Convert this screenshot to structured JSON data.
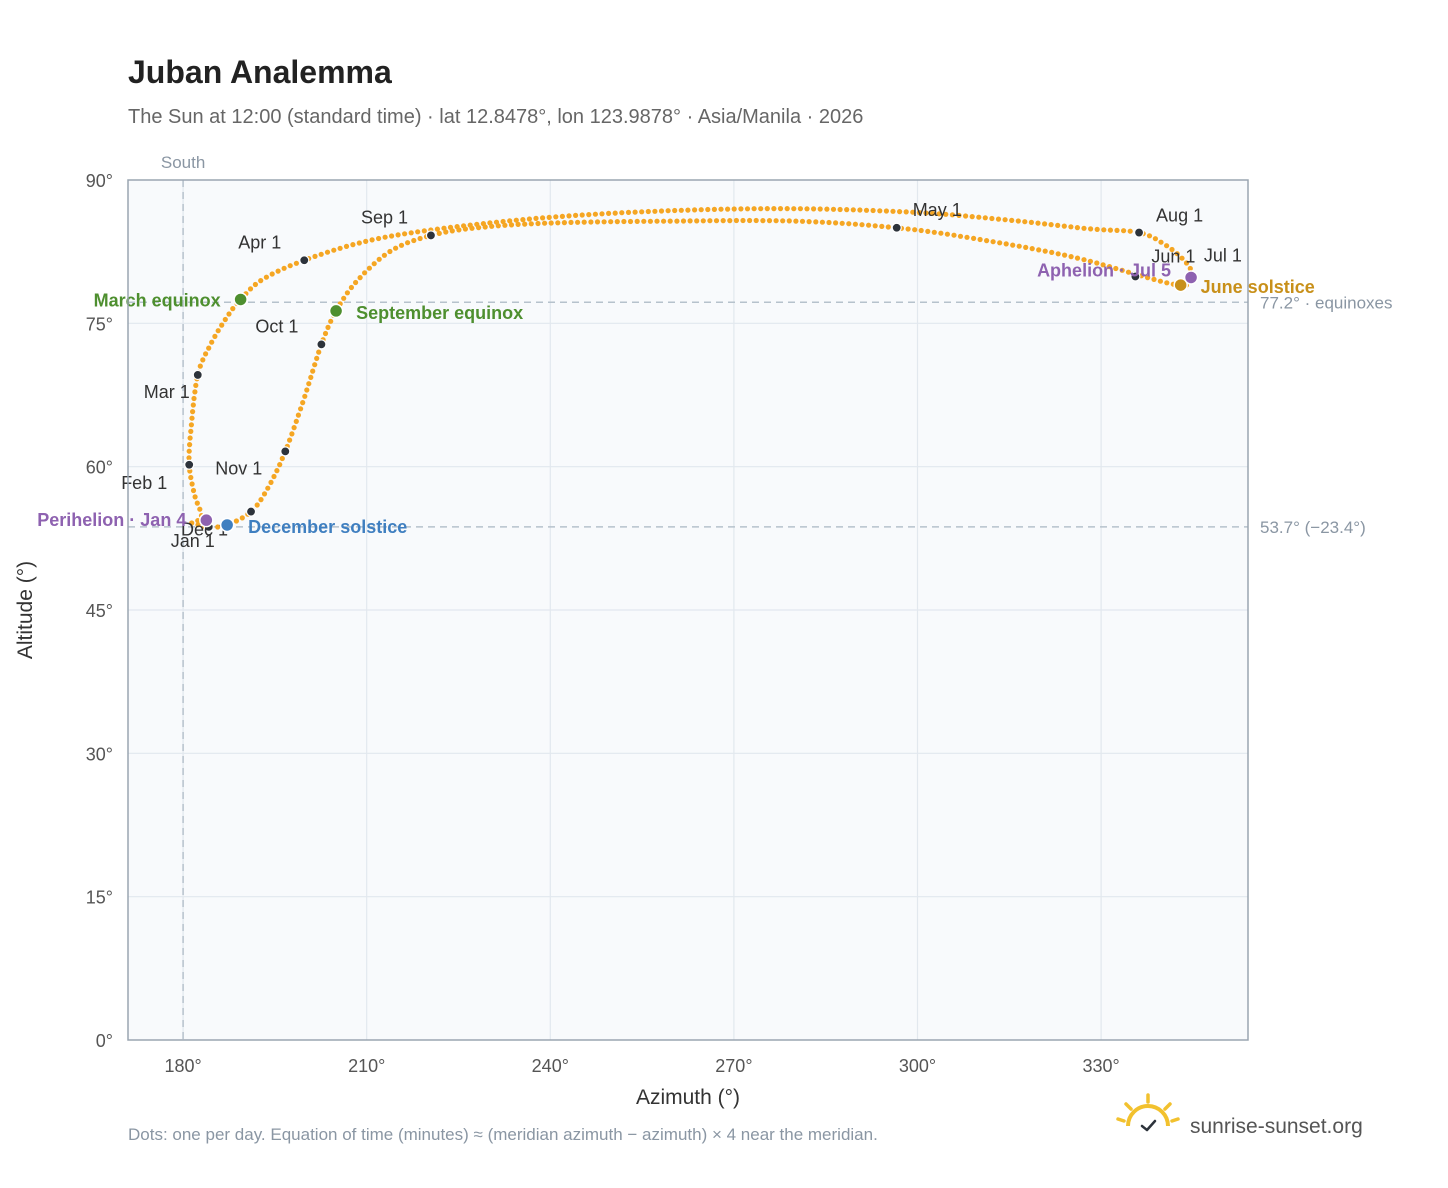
{
  "title": "Juban Analemma",
  "subtitle": "The Sun at 12:00 (standard time) · lat 12.8478°, lon 123.9878° · Asia/Manila · 2026",
  "footnote": "Dots: one per day. Equation of time (minutes) ≈ (meridian azimuth − azimuth) × 4 near the meridian.",
  "brand": {
    "name": "sunrise-sunset.org",
    "icon": "sun-check-icon",
    "icon_color": "#f2c12e"
  },
  "colors": {
    "curve": "#f5a623",
    "month_marker": "#2d333b",
    "equinox": "#4e8f2f",
    "june_solstice": "#c8901a",
    "december_solstice": "#3f7fc0",
    "apsis": "#8e62b0",
    "reference_line": "#b6c2cc",
    "plot_background": "#f8fafc",
    "grid": "#e2e8ee",
    "frame": "#9aa5b1"
  },
  "chart_data": {
    "type": "scatter",
    "xlabel": "Azimuth (°)",
    "ylabel": "Altitude (°)",
    "xlim": [
      171,
      354
    ],
    "ylim": [
      0,
      90
    ],
    "x_ticks": [
      {
        "value": 180,
        "label": "180°"
      },
      {
        "value": 210,
        "label": "210°"
      },
      {
        "value": 240,
        "label": "240°"
      },
      {
        "value": 270,
        "label": "270°"
      },
      {
        "value": 300,
        "label": "300°"
      },
      {
        "value": 330,
        "label": "330°"
      }
    ],
    "y_ticks": [
      {
        "value": 0,
        "label": "0°"
      },
      {
        "value": 15,
        "label": "15°"
      },
      {
        "value": 30,
        "label": "30°"
      },
      {
        "value": 45,
        "label": "45°"
      },
      {
        "value": 60,
        "label": "60°"
      },
      {
        "value": 75,
        "label": "75°"
      },
      {
        "value": 90,
        "label": "90°"
      }
    ],
    "grid": true,
    "meridian": {
      "azimuth": 180,
      "label": "South"
    },
    "reference_lines": [
      {
        "altitude": 77.2,
        "label": "77.2° · equinoxes"
      },
      {
        "altitude": 53.7,
        "label": "53.7° (−23.4°)"
      }
    ],
    "path_waypoints": [
      {
        "az": 181.4,
        "alt": 54.1
      },
      {
        "az": 183.0,
        "alt": 54.8
      },
      {
        "az": 181.9,
        "alt": 57.0
      },
      {
        "az": 181.0,
        "alt": 60.2
      },
      {
        "az": 181.3,
        "alt": 64.0
      },
      {
        "az": 182.4,
        "alt": 69.6
      },
      {
        "az": 184.5,
        "alt": 72.8
      },
      {
        "az": 187.0,
        "alt": 75.5
      },
      {
        "az": 189.4,
        "alt": 77.5
      },
      {
        "az": 193.0,
        "alt": 79.6
      },
      {
        "az": 199.8,
        "alt": 81.6
      },
      {
        "az": 210.0,
        "alt": 83.6
      },
      {
        "az": 222.0,
        "alt": 84.9
      },
      {
        "az": 240.0,
        "alt": 86.1
      },
      {
        "az": 260.0,
        "alt": 86.8
      },
      {
        "az": 280.0,
        "alt": 87.0
      },
      {
        "az": 300.0,
        "alt": 86.6
      },
      {
        "az": 315.0,
        "alt": 85.8
      },
      {
        "az": 328.0,
        "alt": 84.9
      },
      {
        "az": 336.2,
        "alt": 84.5
      },
      {
        "az": 340.5,
        "alt": 83.2
      },
      {
        "az": 343.7,
        "alt": 81.5
      },
      {
        "az": 345.0,
        "alt": 80.0
      },
      {
        "az": 344.2,
        "alt": 79.1
      },
      {
        "az": 343.3,
        "alt": 79.0
      },
      {
        "az": 341.0,
        "alt": 79.2
      },
      {
        "az": 336.4,
        "alt": 80.0
      },
      {
        "az": 325.0,
        "alt": 82.0
      },
      {
        "az": 310.0,
        "alt": 83.8
      },
      {
        "az": 296.6,
        "alt": 85.0
      },
      {
        "az": 280.0,
        "alt": 85.7
      },
      {
        "az": 260.0,
        "alt": 85.7
      },
      {
        "az": 240.0,
        "alt": 85.5
      },
      {
        "az": 228.0,
        "alt": 85.0
      },
      {
        "az": 220.5,
        "alt": 84.2
      },
      {
        "az": 214.0,
        "alt": 82.6
      },
      {
        "az": 208.5,
        "alt": 79.5
      },
      {
        "az": 205.0,
        "alt": 76.3
      },
      {
        "az": 202.6,
        "alt": 72.8
      },
      {
        "az": 199.8,
        "alt": 67.2
      },
      {
        "az": 196.7,
        "alt": 61.6
      },
      {
        "az": 193.8,
        "alt": 57.7
      },
      {
        "az": 191.1,
        "alt": 55.3
      },
      {
        "az": 187.2,
        "alt": 53.9
      },
      {
        "az": 184.2,
        "alt": 53.7
      },
      {
        "az": 181.4,
        "alt": 54.1
      }
    ],
    "month_markers": [
      {
        "label": "Jan 1",
        "az": 184.2,
        "alt": 53.7
      },
      {
        "label": "Feb 1",
        "az": 181.0,
        "alt": 60.2
      },
      {
        "label": "Mar 1",
        "az": 182.4,
        "alt": 69.6
      },
      {
        "label": "Apr 1",
        "az": 199.8,
        "alt": 81.6
      },
      {
        "label": "May 1",
        "az": 296.6,
        "alt": 85.0
      },
      {
        "label": "Jun 1",
        "az": 335.6,
        "alt": 79.9
      },
      {
        "label": "Jul 1",
        "az": 344.5,
        "alt": 79.8
      },
      {
        "label": "Aug 1",
        "az": 336.2,
        "alt": 84.5
      },
      {
        "label": "Sep 1",
        "az": 220.5,
        "alt": 84.2
      },
      {
        "label": "Oct 1",
        "az": 202.6,
        "alt": 72.8
      },
      {
        "label": "Nov 1",
        "az": 196.7,
        "alt": 61.6
      },
      {
        "label": "Dec 1",
        "az": 191.1,
        "alt": 55.3
      }
    ],
    "events": [
      {
        "label": "March equinox",
        "az": 189.4,
        "alt": 77.5,
        "kind": "equinox"
      },
      {
        "label": "September equinox",
        "az": 205.0,
        "alt": 76.3,
        "kind": "equinox"
      },
      {
        "label": "June solstice",
        "az": 343.0,
        "alt": 79.0,
        "kind": "june_solstice"
      },
      {
        "label": "December solstice",
        "az": 187.2,
        "alt": 53.9,
        "kind": "december_solstice"
      },
      {
        "label": "Perihelion · Jan 4",
        "az": 183.8,
        "alt": 54.4,
        "kind": "apsis"
      },
      {
        "label": "Aphelion · Jul 5",
        "az": 344.7,
        "alt": 79.8,
        "kind": "apsis"
      }
    ]
  }
}
